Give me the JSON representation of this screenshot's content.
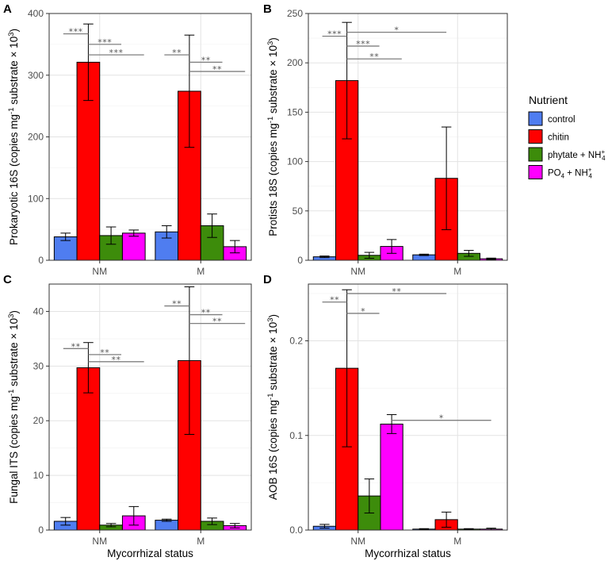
{
  "legend": {
    "title": "Nutrient",
    "entries": [
      {
        "key": "control",
        "label": "control",
        "color": "#4f7df0"
      },
      {
        "key": "chitin",
        "label": "chitin",
        "color": "#ff0000"
      },
      {
        "key": "phytate",
        "label": "phytate + NH",
        "sup": "+",
        "sub": "4",
        "color": "#3d8c0b"
      },
      {
        "key": "po4",
        "label": "PO",
        "sub1": "4",
        "label2": " + NH",
        "sup": "+",
        "sub": "4",
        "color": "#ff00ff"
      }
    ]
  },
  "x_axis_title": "Mycorrhizal status",
  "chart_data": [
    {
      "panel": "A",
      "type": "bar",
      "categories": [
        "NM",
        "M"
      ],
      "ylabel": "Prokaryotic 16S (copies mg",
      "ylabel_sup1": "-1",
      "ylabel_mid": " substrate × 10",
      "ylabel_sup2": "3",
      "ylabel_end": ")",
      "ylim": [
        0,
        400
      ],
      "yticks": [
        0,
        100,
        200,
        300,
        400
      ],
      "series": [
        {
          "name": "control",
          "values": [
            38,
            46
          ],
          "errors": [
            6,
            10
          ]
        },
        {
          "name": "chitin",
          "values": [
            321,
            274
          ],
          "errors": [
            62,
            91
          ]
        },
        {
          "name": "phytate + NH4+",
          "values": [
            40,
            56
          ],
          "errors": [
            14,
            19
          ]
        },
        {
          "name": "PO4 + NH4+",
          "values": [
            44,
            22
          ],
          "errors": [
            5,
            10
          ]
        }
      ],
      "annotations": [
        {
          "text": "***",
          "group": "NM",
          "from": 0,
          "to": 1,
          "y": 367
        },
        {
          "text": "***",
          "group": "NM",
          "from": 1,
          "to": 2,
          "y": 350
        },
        {
          "text": "***",
          "group": "NM",
          "from": 1,
          "to": 3,
          "y": 333
        },
        {
          "text": "**",
          "group": "M",
          "from": 0,
          "to": 1,
          "y": 333
        },
        {
          "text": "**",
          "group": "M",
          "from": 1,
          "to": 2,
          "y": 321
        },
        {
          "text": "**",
          "group": "M",
          "from": 1,
          "to": 3,
          "y": 306
        }
      ]
    },
    {
      "panel": "B",
      "type": "bar",
      "categories": [
        "NM",
        "M"
      ],
      "ylabel": "Protists 18S (copies mg",
      "ylabel_sup1": "-1",
      "ylabel_mid": " substrate × 10",
      "ylabel_sup2": "3",
      "ylabel_end": ")",
      "ylim": [
        0,
        250
      ],
      "yticks": [
        0,
        50,
        100,
        150,
        200,
        250
      ],
      "series": [
        {
          "name": "control",
          "values": [
            3.5,
            5.5
          ],
          "errors": [
            0.8,
            0.7
          ]
        },
        {
          "name": "chitin",
          "values": [
            182,
            83
          ],
          "errors": [
            59,
            52
          ]
        },
        {
          "name": "phytate + NH4+",
          "values": [
            5,
            7
          ],
          "errors": [
            3,
            3
          ]
        },
        {
          "name": "PO4 + NH4+",
          "values": [
            14,
            1.5
          ],
          "errors": [
            7,
            0.7
          ]
        }
      ],
      "annotations": [
        {
          "text": "***",
          "group": "NM",
          "from": 0,
          "to": 1,
          "y": 227
        },
        {
          "text": "***",
          "group": "NM",
          "from": 1,
          "to": 2,
          "y": 217
        },
        {
          "text": "**",
          "group": "NM",
          "from": 1,
          "to": 3,
          "y": 204
        },
        {
          "text": "*",
          "span": "NM-chitin to M-chitin",
          "y": 231
        }
      ]
    },
    {
      "panel": "C",
      "type": "bar",
      "categories": [
        "NM",
        "M"
      ],
      "ylabel": "Fungal ITS (copies mg",
      "ylabel_sup1": "-1",
      "ylabel_mid": " substrate × 10",
      "ylabel_sup2": "3",
      "ylabel_end": ")",
      "ylim": [
        0,
        45
      ],
      "yticks": [
        0,
        10,
        20,
        30,
        40
      ],
      "series": [
        {
          "name": "control",
          "values": [
            1.6,
            1.8
          ],
          "errors": [
            0.7,
            0.2
          ]
        },
        {
          "name": "chitin",
          "values": [
            29.7,
            31.0
          ],
          "errors": [
            4.6,
            13.5
          ]
        },
        {
          "name": "phytate + NH4+",
          "values": [
            0.9,
            1.6
          ],
          "errors": [
            0.3,
            0.6
          ]
        },
        {
          "name": "PO4 + NH4+",
          "values": [
            2.6,
            0.8
          ],
          "errors": [
            1.7,
            0.4
          ]
        }
      ],
      "annotations": [
        {
          "text": "**",
          "group": "NM",
          "from": 0,
          "to": 1,
          "y": 33.2
        },
        {
          "text": "**",
          "group": "NM",
          "from": 1,
          "to": 2,
          "y": 32.1
        },
        {
          "text": "**",
          "group": "NM",
          "from": 1,
          "to": 3,
          "y": 30.8
        },
        {
          "text": "**",
          "group": "M",
          "from": 0,
          "to": 1,
          "y": 41.0
        },
        {
          "text": "**",
          "group": "M",
          "from": 1,
          "to": 2,
          "y": 39.4
        },
        {
          "text": "**",
          "group": "M",
          "from": 1,
          "to": 3,
          "y": 37.8
        }
      ]
    },
    {
      "panel": "D",
      "type": "bar",
      "categories": [
        "NM",
        "M"
      ],
      "ylabel": "AOB 16S (copies mg",
      "ylabel_sup1": "-1",
      "ylabel_mid": " substrate × 10",
      "ylabel_sup2": "3",
      "ylabel_end": ")",
      "ylim": [
        0,
        0.26
      ],
      "yticks": [
        0.0,
        0.1,
        0.2
      ],
      "ytick_labels": [
        "0.0",
        "0.1",
        "0.2"
      ],
      "series": [
        {
          "name": "control",
          "values": [
            0.004,
            0.001
          ],
          "errors": [
            0.002,
            0.0005
          ]
        },
        {
          "name": "chitin",
          "values": [
            0.171,
            0.011
          ],
          "errors": [
            0.083,
            0.008
          ]
        },
        {
          "name": "phytate + NH4+",
          "values": [
            0.036,
            0.001
          ],
          "errors": [
            0.018,
            0.0005
          ]
        },
        {
          "name": "PO4 + NH4+",
          "values": [
            0.112,
            0.001
          ],
          "errors": [
            0.01,
            0.001
          ]
        }
      ],
      "annotations": [
        {
          "text": "**",
          "group": "NM",
          "from": 0,
          "to": 1,
          "y": 0.241
        },
        {
          "text": "*",
          "group": "NM",
          "from": 1,
          "to": 2,
          "y": 0.229
        },
        {
          "text": "**",
          "span": "NM-chitin to M-chitin",
          "y": 0.25
        },
        {
          "text": "*",
          "span": "NM-po4 to M-po4",
          "y": 0.116
        }
      ]
    }
  ]
}
